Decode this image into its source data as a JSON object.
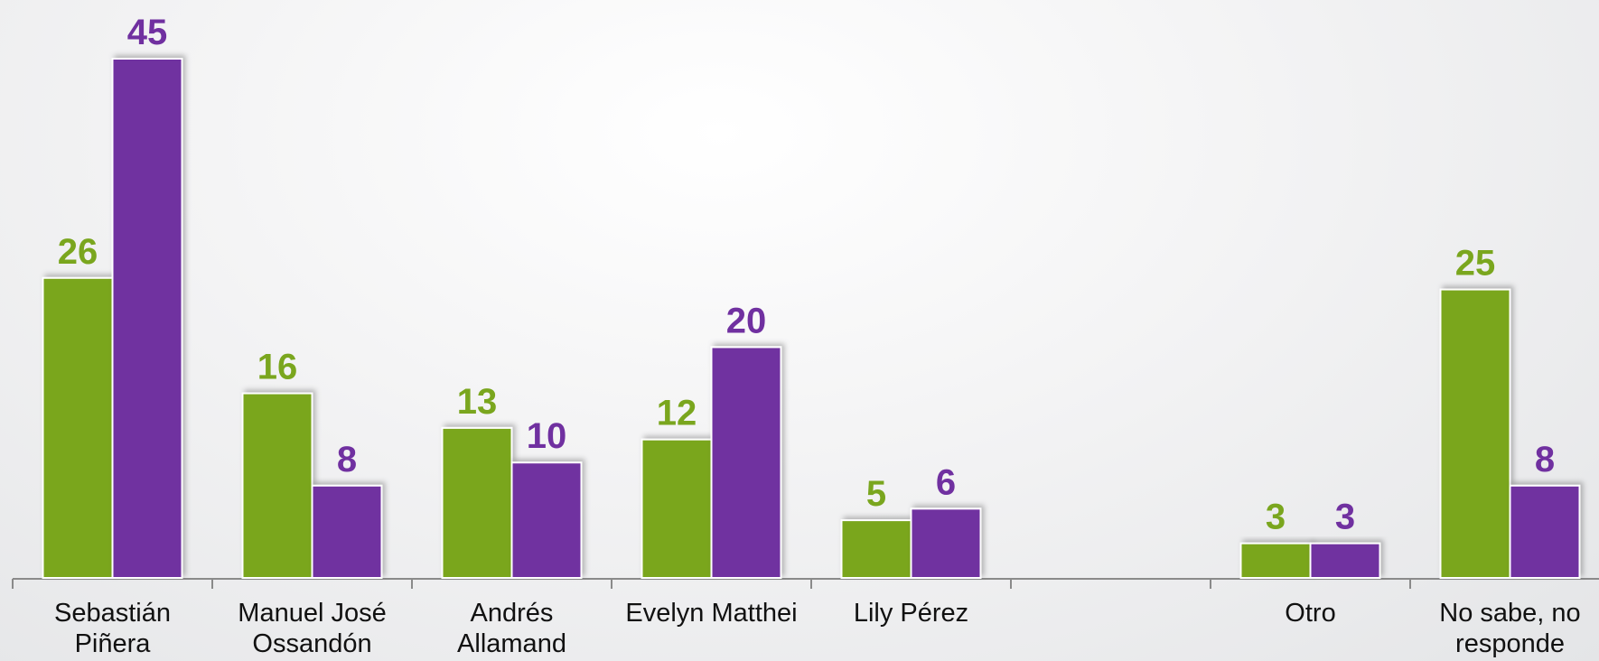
{
  "chart_data": {
    "type": "bar",
    "categories": [
      "Sebastián Piñera",
      "Manuel José Ossandón",
      "Andrés Allamand",
      "Evelyn Matthei",
      "Lily Pérez",
      null,
      "Otro",
      "No sabe, no responde"
    ],
    "series": [
      {
        "color": "#7aa61e",
        "values": [
          26,
          16,
          13,
          12,
          5,
          null,
          3,
          25
        ]
      },
      {
        "color": "#7030a0",
        "values": [
          45,
          8,
          10,
          20,
          6,
          null,
          3,
          8
        ]
      }
    ]
  }
}
